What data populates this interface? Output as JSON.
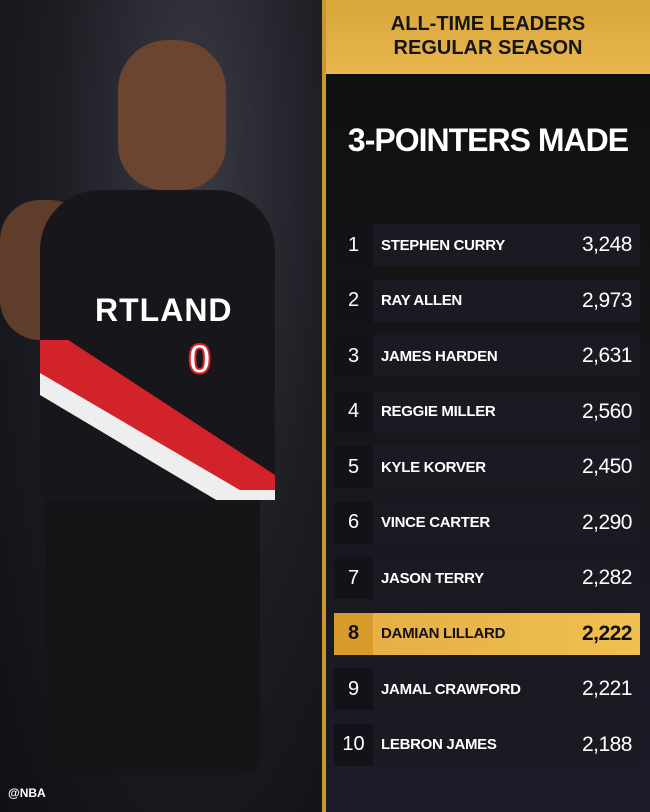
{
  "header": {
    "line1": "ALL-TIME LEADERS",
    "line2": "REGULAR SEASON"
  },
  "title": "3-POINTERS MADE",
  "photo": {
    "jersey_text": "RTLAND",
    "jersey_number": "0",
    "watermark": "@NBA"
  },
  "colors": {
    "gold": "#e8b64c",
    "row_bg": "#1a1b22",
    "jersey_red": "#d2232a"
  },
  "leaders": [
    {
      "rank": "1",
      "name": "STEPHEN CURRY",
      "value": "3,248"
    },
    {
      "rank": "2",
      "name": "RAY ALLEN",
      "value": "2,973"
    },
    {
      "rank": "3",
      "name": "JAMES HARDEN",
      "value": "2,631"
    },
    {
      "rank": "4",
      "name": "REGGIE MILLER",
      "value": "2,560"
    },
    {
      "rank": "5",
      "name": "KYLE KORVER",
      "value": "2,450"
    },
    {
      "rank": "6",
      "name": "VINCE CARTER",
      "value": "2,290"
    },
    {
      "rank": "7",
      "name": "JASON TERRY",
      "value": "2,282"
    },
    {
      "rank": "8",
      "name": "DAMIAN LILLARD",
      "value": "2,222",
      "highlighted": true
    },
    {
      "rank": "9",
      "name": "JAMAL CRAWFORD",
      "value": "2,221"
    },
    {
      "rank": "10",
      "name": "LEBRON JAMES",
      "value": "2,188"
    }
  ]
}
